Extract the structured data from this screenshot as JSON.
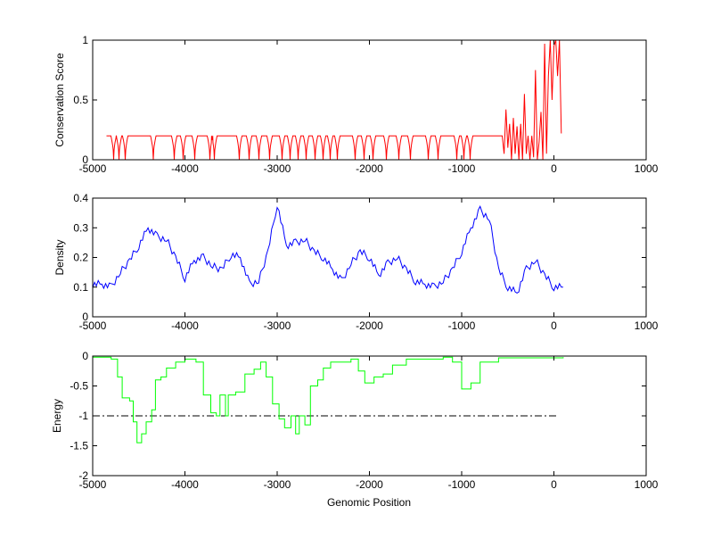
{
  "chart_data": [
    {
      "type": "line",
      "ylabel": "Conservation Score",
      "xlim": [
        -5000,
        1000
      ],
      "ylim": [
        0,
        1
      ],
      "xticks": [
        "-5000",
        "-4000",
        "-3000",
        "-2000",
        "-1000",
        "0",
        "1000"
      ],
      "yticks": [
        "0",
        "0.5",
        "1"
      ],
      "ytick_values": [
        0,
        0.5,
        1
      ],
      "color": "#ff0000",
      "baseline": 0.2,
      "baseline_range": [
        -4850,
        -580
      ],
      "dips": [
        -4773,
        -4715,
        -4647,
        -4343,
        -4116,
        -4019,
        -3894,
        -3729,
        -3681,
        -3411,
        -3304,
        -3198,
        -3082,
        -2947,
        -2860,
        -2773,
        -2686,
        -2589,
        -2502,
        -2425,
        -2348,
        -2155,
        -2058,
        -1961,
        -1816,
        -1681,
        -1556,
        -1362,
        -1256,
        -1053,
        -976,
        -908
      ],
      "tail_x": [
        -560,
        -540,
        -520,
        -500,
        -480,
        -460,
        -440,
        -420,
        -400,
        -380,
        -360,
        -340,
        -320,
        -300,
        -280,
        -260,
        -240,
        -220,
        -200,
        -180,
        -160,
        -140,
        -120,
        -100,
        -80,
        -60,
        -40,
        -20,
        0,
        20,
        40,
        60,
        80
      ],
      "tail_y": [
        0.2,
        0.05,
        0.42,
        0.1,
        0.3,
        0.0,
        0.35,
        0.05,
        0.28,
        0.0,
        0.3,
        0.0,
        0.55,
        0.05,
        0.2,
        0.0,
        0.2,
        0.02,
        0.75,
        0.0,
        0.15,
        0.4,
        0.0,
        0.97,
        0.05,
        0.7,
        1.0,
        0.5,
        0.95,
        1.0,
        0.7,
        1.0,
        0.22
      ]
    },
    {
      "type": "line",
      "ylabel": "Density",
      "xlim": [
        -5000,
        1000
      ],
      "ylim": [
        0,
        0.4
      ],
      "xticks": [
        "-5000",
        "-4000",
        "-3000",
        "-2000",
        "-1000",
        "0",
        "1000"
      ],
      "yticks": [
        "0",
        "0.1",
        "0.2",
        "0.3",
        "0.4"
      ],
      "ytick_values": [
        0,
        0.1,
        0.2,
        0.3,
        0.4
      ],
      "color": "#0000ff",
      "x": [
        -5000,
        -4900,
        -4800,
        -4700,
        -4600,
        -4500,
        -4400,
        -4300,
        -4200,
        -4100,
        -4000,
        -3900,
        -3800,
        -3700,
        -3600,
        -3500,
        -3400,
        -3300,
        -3200,
        -3100,
        -3000,
        -2900,
        -2800,
        -2700,
        -2600,
        -2500,
        -2400,
        -2300,
        -2200,
        -2100,
        -2000,
        -1900,
        -1800,
        -1700,
        -1600,
        -1500,
        -1400,
        -1300,
        -1200,
        -1100,
        -1000,
        -900,
        -800,
        -700,
        -600,
        -500,
        -400,
        -300,
        -200,
        -100,
        0,
        100
      ],
      "y": [
        0.11,
        0.11,
        0.1,
        0.15,
        0.19,
        0.24,
        0.3,
        0.27,
        0.26,
        0.2,
        0.13,
        0.19,
        0.2,
        0.17,
        0.16,
        0.21,
        0.2,
        0.11,
        0.12,
        0.22,
        0.38,
        0.24,
        0.25,
        0.26,
        0.22,
        0.2,
        0.16,
        0.12,
        0.18,
        0.22,
        0.2,
        0.14,
        0.18,
        0.2,
        0.16,
        0.12,
        0.11,
        0.1,
        0.12,
        0.16,
        0.22,
        0.3,
        0.36,
        0.33,
        0.16,
        0.1,
        0.08,
        0.16,
        0.19,
        0.14,
        0.1,
        0.1
      ]
    },
    {
      "type": "line",
      "ylabel": "Energy",
      "xlabel": "Genomic Position",
      "xlim": [
        -5000,
        1000
      ],
      "ylim": [
        -2,
        0
      ],
      "xticks": [
        "-5000",
        "-4000",
        "-3000",
        "-2000",
        "-1000",
        "0",
        "1000"
      ],
      "yticks": [
        "-2",
        "-1.5",
        "-1",
        "-0.5",
        "0"
      ],
      "ytick_values": [
        -2,
        -1.5,
        -1,
        -0.5,
        0
      ],
      "color": "#00ff00",
      "threshold": -1,
      "threshold_range": [
        -5000,
        50
      ],
      "x": [
        -5000,
        -4800,
        -4730,
        -4680,
        -4600,
        -4560,
        -4520,
        -4470,
        -4420,
        -4360,
        -4320,
        -4260,
        -4200,
        -4100,
        -4000,
        -3880,
        -3800,
        -3720,
        -3660,
        -3620,
        -3560,
        -3530,
        -3450,
        -3350,
        -3250,
        -3180,
        -3120,
        -3050,
        -2980,
        -2920,
        -2850,
        -2800,
        -2760,
        -2700,
        -2640,
        -2560,
        -2500,
        -2420,
        -2300,
        -2200,
        -2120,
        -2050,
        -1950,
        -1850,
        -1750,
        -1600,
        -1200,
        -1100,
        -1000,
        -900,
        -800,
        -600,
        100
      ],
      "y": [
        -0.02,
        -0.05,
        -0.35,
        -0.7,
        -0.75,
        -1.1,
        -1.45,
        -1.3,
        -1.1,
        -0.9,
        -0.4,
        -0.35,
        -0.2,
        -0.1,
        -0.05,
        -0.1,
        -0.65,
        -0.95,
        -1.0,
        -0.65,
        -1.0,
        -0.65,
        -0.6,
        -0.3,
        -0.22,
        -0.1,
        -0.35,
        -0.8,
        -1.05,
        -1.2,
        -1.0,
        -1.3,
        -1.0,
        -1.15,
        -0.5,
        -0.4,
        -0.2,
        -0.1,
        -0.1,
        -0.05,
        -0.25,
        -0.45,
        -0.35,
        -0.3,
        -0.15,
        -0.05,
        -0.02,
        -0.1,
        -0.55,
        -0.45,
        -0.1,
        -0.03,
        -0.02
      ]
    }
  ]
}
